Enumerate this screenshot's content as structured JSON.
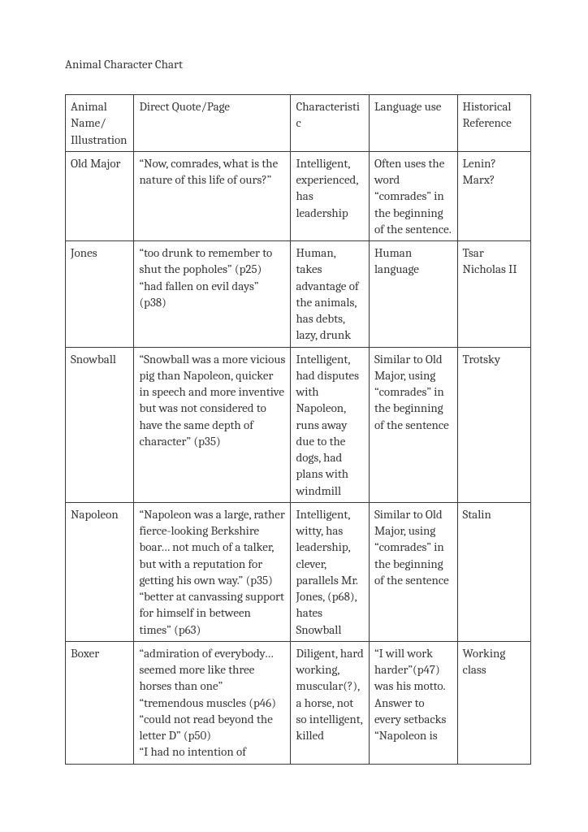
{
  "title": "Animal Character Chart",
  "columns": [
    "Animal Name/ Illustration",
    "Direct Quote/Page",
    "Characteristic",
    "Language use",
    "Historical Reference"
  ],
  "rows": [
    {
      "name": "Old Major",
      "quote": "“Now, comrades, what is the nature of this life of ours?”",
      "characteristic": "Intelligent, experienced, has leadership",
      "language": "Often uses the word “comrades” in the beginning of the sentence.",
      "historical": "Lenin? Marx?"
    },
    {
      "name": "Jones",
      "quote": "“too drunk to remember to shut the popholes” (p25)\n“had fallen on evil days” (p38)",
      "characteristic": "Human, takes advantage of the animals, has debts, lazy, drunk",
      "language": "Human language",
      "historical": "Tsar Nicholas II"
    },
    {
      "name": "Snowball",
      "quote": "“Snowball was a more vicious pig than Napoleon, quicker in speech and more inventive but was not considered to have the same depth of character” (p35)",
      "characteristic": "Intelligent, had disputes with Napoleon, runs away due to the dogs, had plans with windmill",
      "language": "Similar to Old Major, using “comrades” in the beginning of the sentence",
      "historical": "Trotsky"
    },
    {
      "name": "Napoleon",
      "quote": "“Napoleon was a large, rather fierce-looking Berkshire boar… not much of a talker, but with a reputation for getting his own way.” (p35)\n“better at canvassing support for himself in between times” (p63)",
      "characteristic": "Intelligent, witty, has leadership, clever, parallels Mr. Jones, (p68), hates Snowball",
      "language": "Similar to Old Major, using “comrades” in the beginning of the sentence",
      "historical": "Stalin"
    },
    {
      "name": "Boxer",
      "quote": "“admiration of everybody…seemed more like three horses than one”\n“tremendous muscles (p46)\n“could not read beyond the letter D” (p50)\n“I had no intention of",
      "characteristic": "Diligent, hard working, muscular(?), a horse, not so intelligent, killed",
      "language": "“I will work harder”(p47) was his motto. Answer to every setbacks “Napoleon is",
      "historical": "Working class"
    }
  ],
  "styling": {
    "background_color": "#ffffff",
    "text_color": "#3a3a3a",
    "border_color": "#3a3a3a",
    "font_family": "Cambria/serif",
    "font_size_pt": 11,
    "column_widths_pct": [
      14,
      32,
      16,
      18,
      15
    ]
  }
}
